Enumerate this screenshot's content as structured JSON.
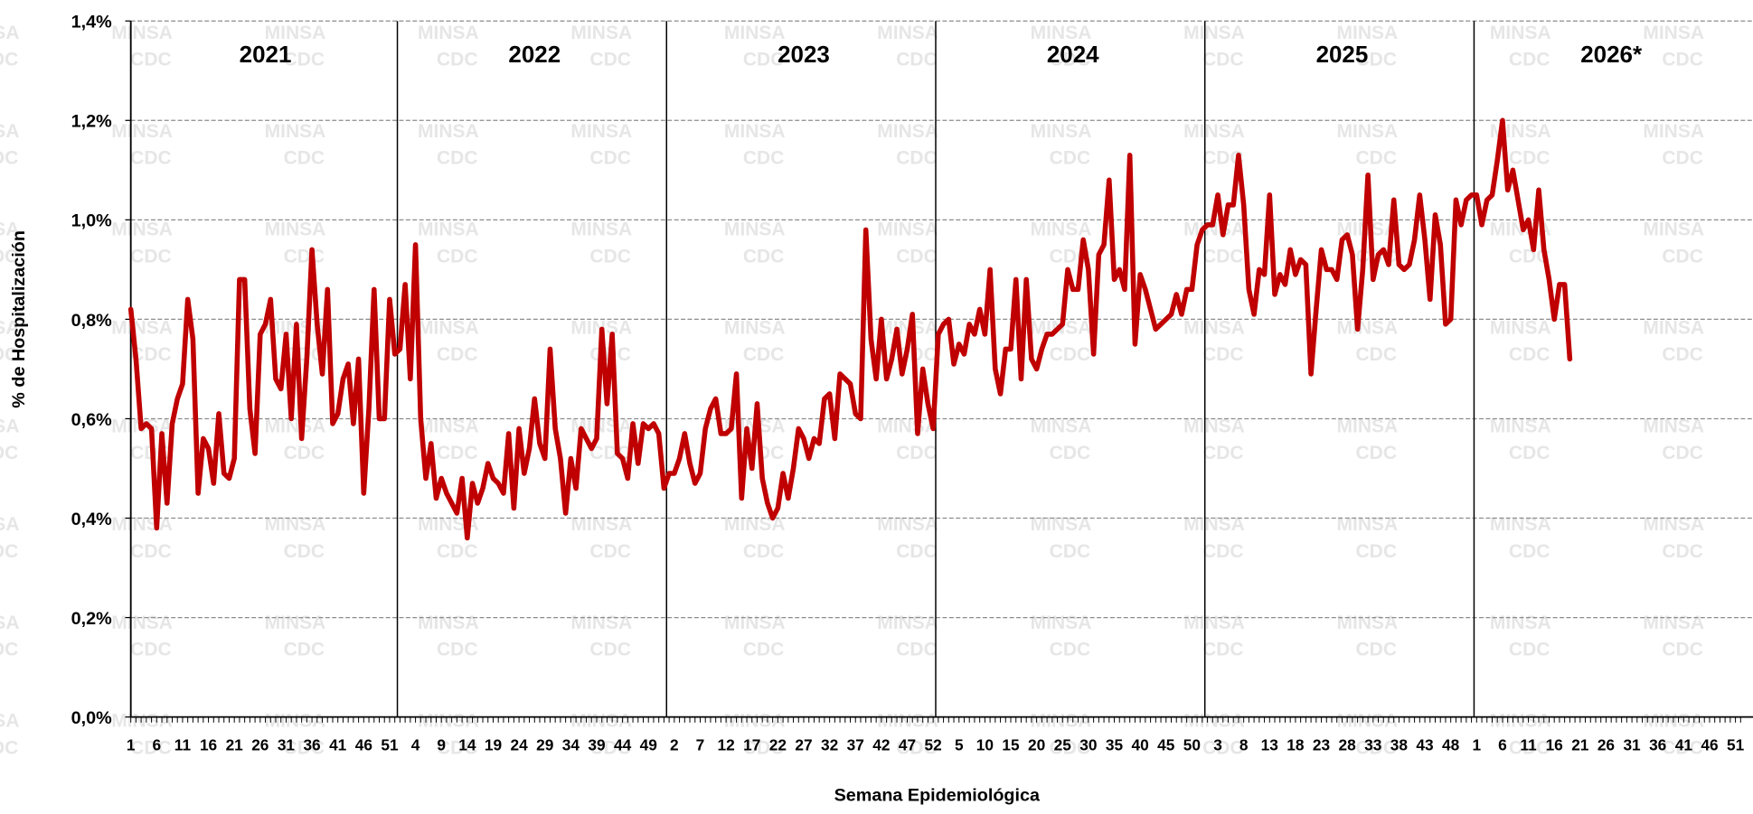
{
  "chart_data": {
    "type": "line",
    "y_label": "% de Hospitalización",
    "x_label": "Semana Epidemiológica",
    "year_labels": [
      "2021",
      "2022",
      "2023",
      "2024",
      "2025",
      "2026*"
    ],
    "watermark": [
      "MINSA",
      "CDC"
    ],
    "ylim": [
      0,
      1.4
    ],
    "yticks": [
      {
        "value": 0,
        "label": "0,0%"
      },
      {
        "value": 0.2,
        "label": "0,2%"
      },
      {
        "value": 0.4,
        "label": "0,4%"
      },
      {
        "value": 0.6,
        "label": "0,6%"
      },
      {
        "value": 0.8,
        "label": "0,8%"
      },
      {
        "value": 1.0,
        "label": "1,0%"
      },
      {
        "value": 1.2,
        "label": "1,2%"
      },
      {
        "value": 1.4,
        "label": "1,4%"
      }
    ],
    "grid": true,
    "categories": [
      "1",
      null,
      null,
      null,
      null,
      "6",
      null,
      null,
      null,
      null,
      "11",
      null,
      null,
      null,
      null,
      "16",
      null,
      null,
      null,
      null,
      "21",
      null,
      null,
      null,
      null,
      "26",
      null,
      null,
      null,
      null,
      "31",
      null,
      null,
      null,
      null,
      "36",
      null,
      null,
      null,
      null,
      "41",
      null,
      null,
      null,
      null,
      "46",
      null,
      null,
      null,
      null,
      "51",
      null,
      null,
      null,
      null,
      "4",
      null,
      null,
      null,
      null,
      "9",
      null,
      null,
      null,
      null,
      "14",
      null,
      null,
      null,
      null,
      "19",
      null,
      null,
      null,
      null,
      "24",
      null,
      null,
      null,
      null,
      "29",
      null,
      null,
      null,
      null,
      "34",
      null,
      null,
      null,
      null,
      "39",
      null,
      null,
      null,
      null,
      "44",
      null,
      null,
      null,
      null,
      "49",
      null,
      null,
      null,
      null,
      "2",
      null,
      null,
      null,
      null,
      "7",
      null,
      null,
      null,
      null,
      "12",
      null,
      null,
      null,
      null,
      "17",
      null,
      null,
      null,
      null,
      "22",
      null,
      null,
      null,
      null,
      "27",
      null,
      null,
      null,
      null,
      "32",
      null,
      null,
      null,
      null,
      "37",
      null,
      null,
      null,
      null,
      "42",
      null,
      null,
      null,
      null,
      "47",
      null,
      null,
      null,
      null,
      "52",
      null,
      null,
      null,
      null,
      "5",
      null,
      null,
      null,
      null,
      "10",
      null,
      null,
      null,
      null,
      "15",
      null,
      null,
      null,
      null,
      "20",
      null,
      null,
      null,
      null,
      "25",
      null,
      null,
      null,
      null,
      "30",
      null,
      null,
      null,
      null,
      "35",
      null,
      null,
      null,
      null,
      "40",
      null,
      null,
      null,
      null,
      "45",
      null,
      null,
      null,
      null,
      "50",
      null,
      null,
      null,
      null,
      "3",
      null,
      null,
      null,
      null,
      "8",
      null,
      null,
      null,
      null,
      "13",
      null,
      null,
      null,
      null,
      "18",
      null,
      null,
      null,
      null,
      "23",
      null,
      null,
      null,
      null,
      "28",
      null,
      null,
      null,
      null,
      "33",
      null,
      null,
      null,
      null,
      "38",
      null,
      null,
      null,
      null,
      "43",
      null,
      null,
      null,
      null,
      "48",
      null,
      null,
      null,
      null,
      "1",
      null,
      null,
      null,
      null,
      "6",
      null,
      null,
      null,
      null,
      "11",
      null,
      null,
      null,
      null,
      "16",
      null,
      null,
      null,
      null,
      "21",
      null,
      null,
      null,
      null,
      "26",
      null,
      null,
      null,
      null,
      "31",
      null,
      null,
      null,
      null,
      "36",
      null,
      null,
      null,
      null,
      "41",
      null,
      null,
      null,
      null,
      "46",
      null,
      null,
      null,
      null,
      "51",
      null
    ],
    "series": [
      {
        "color": "#c00000",
        "values": [
          0.82,
          0.72,
          0.58,
          0.59,
          0.58,
          0.38,
          0.57,
          0.43,
          0.59,
          0.64,
          0.67,
          0.84,
          0.76,
          0.45,
          0.56,
          0.54,
          0.47,
          0.61,
          0.49,
          0.48,
          0.52,
          0.88,
          0.88,
          0.62,
          0.53,
          0.77,
          0.79,
          0.84,
          0.68,
          0.66,
          0.77,
          0.6,
          0.79,
          0.56,
          0.72,
          0.94,
          0.79,
          0.69,
          0.86,
          0.59,
          0.61,
          0.68,
          0.71,
          0.59,
          0.72,
          0.45,
          0.62,
          0.86,
          0.6,
          0.6,
          0.84,
          0.73,
          0.74,
          0.87,
          0.68,
          0.95,
          0.6,
          0.48,
          0.55,
          0.44,
          0.48,
          0.45,
          0.43,
          0.41,
          0.48,
          0.36,
          0.47,
          0.43,
          0.46,
          0.51,
          0.48,
          0.47,
          0.45,
          0.57,
          0.42,
          0.58,
          0.49,
          0.54,
          0.64,
          0.55,
          0.52,
          0.74,
          0.58,
          0.52,
          0.41,
          0.52,
          0.46,
          0.58,
          0.56,
          0.54,
          0.56,
          0.78,
          0.63,
          0.77,
          0.53,
          0.52,
          0.48,
          0.59,
          0.51,
          0.59,
          0.58,
          0.59,
          0.57,
          0.46,
          0.49,
          0.49,
          0.52,
          0.57,
          0.51,
          0.47,
          0.49,
          0.58,
          0.62,
          0.64,
          0.57,
          0.57,
          0.58,
          0.69,
          0.44,
          0.58,
          0.5,
          0.63,
          0.48,
          0.43,
          0.4,
          0.42,
          0.49,
          0.44,
          0.5,
          0.58,
          0.56,
          0.52,
          0.56,
          0.55,
          0.64,
          0.65,
          0.56,
          0.69,
          0.68,
          0.67,
          0.61,
          0.6,
          0.98,
          0.76,
          0.68,
          0.8,
          0.68,
          0.72,
          0.78,
          0.69,
          0.74,
          0.81,
          0.57,
          0.7,
          0.63,
          0.58,
          0.77,
          0.79,
          0.8,
          0.71,
          0.75,
          0.73,
          0.79,
          0.77,
          0.82,
          0.77,
          0.9,
          0.7,
          0.65,
          0.74,
          0.74,
          0.88,
          0.68,
          0.88,
          0.72,
          0.7,
          0.74,
          0.77,
          0.77,
          0.78,
          0.79,
          0.9,
          0.86,
          0.86,
          0.96,
          0.9,
          0.73,
          0.93,
          0.95,
          1.08,
          0.88,
          0.9,
          0.86,
          1.13,
          0.75,
          0.89,
          0.86,
          0.82,
          0.78,
          0.79,
          0.8,
          0.81,
          0.85,
          0.81,
          0.86,
          0.86,
          0.95,
          0.98,
          0.99,
          0.99,
          1.05,
          0.97,
          1.03,
          1.03,
          1.13,
          1.03,
          0.86,
          0.81,
          0.9,
          0.89,
          1.05,
          0.85,
          0.89,
          0.87,
          0.94,
          0.89,
          0.92,
          0.91,
          0.69,
          0.82,
          0.94,
          0.9,
          0.9,
          0.88,
          0.96,
          0.97,
          0.93,
          0.78,
          0.9,
          1.09,
          0.88,
          0.93,
          0.94,
          0.91,
          1.04,
          0.91,
          0.9,
          0.91,
          0.96,
          1.05,
          0.96,
          0.84,
          1.01,
          0.95,
          0.79,
          0.8,
          1.04,
          0.99,
          1.04,
          1.05,
          1.05,
          0.99,
          1.04,
          1.05,
          1.12,
          1.2,
          1.06,
          1.1,
          1.04,
          0.98,
          1.0,
          0.94,
          1.06,
          0.94,
          0.88,
          0.8,
          0.87,
          0.87,
          0.72,
          null,
          null,
          null,
          null,
          null,
          null,
          null,
          null,
          null,
          null,
          null,
          null,
          null,
          null,
          null,
          null,
          null,
          null,
          null,
          null,
          null,
          null,
          null,
          null,
          null,
          null,
          null,
          null,
          null,
          null,
          null,
          null,
          null
        ]
      }
    ]
  }
}
